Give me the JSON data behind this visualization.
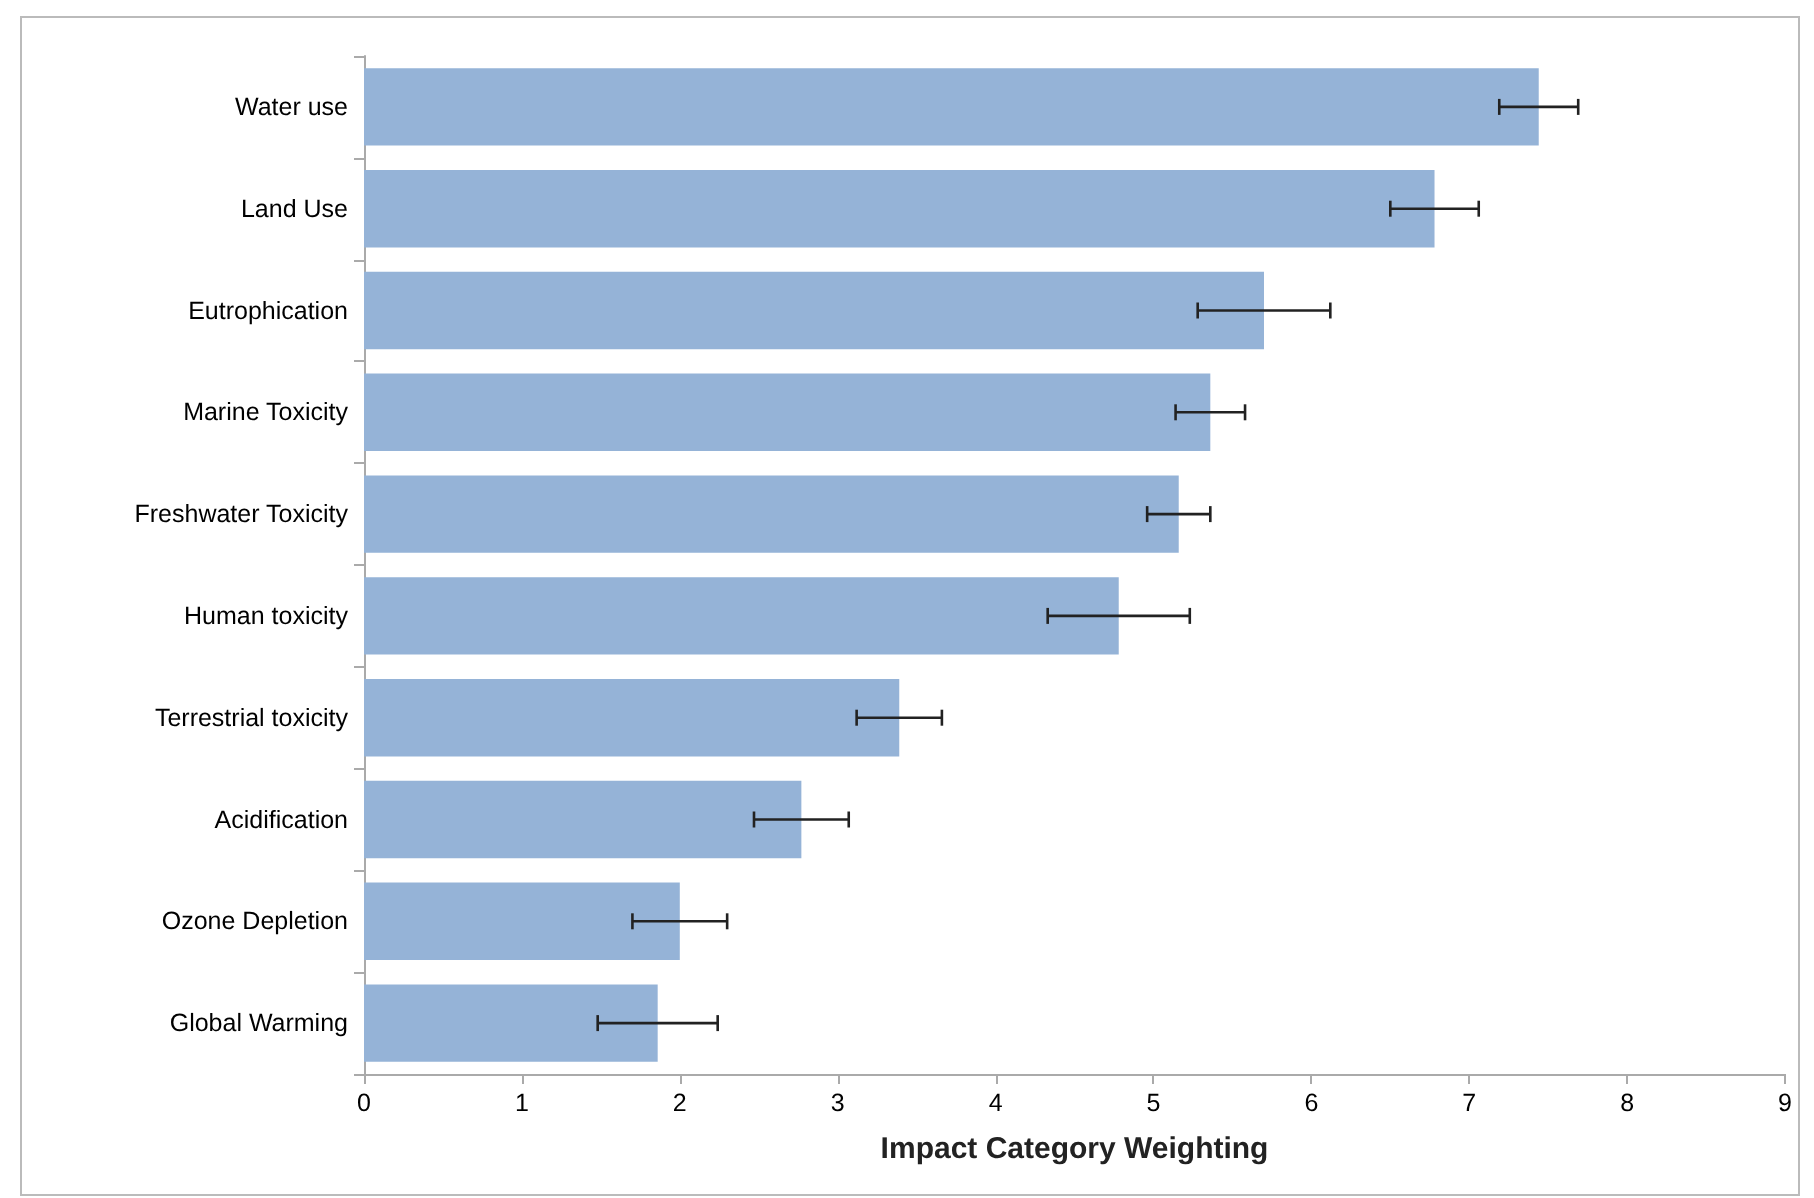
{
  "chart_data": {
    "type": "bar",
    "orientation": "horizontal",
    "xlabel": "Impact Category Weighting",
    "categories": [
      "Water use",
      "Land Use",
      "Eutrophication",
      "Marine Toxicity",
      "Freshwater Toxicity",
      "Human toxicity",
      "Terrestrial toxicity",
      "Acidification",
      "Ozone Depletion",
      "Global Warming"
    ],
    "values": [
      7.44,
      6.78,
      5.7,
      5.36,
      5.16,
      4.78,
      3.39,
      2.77,
      2.0,
      1.86
    ],
    "errors": [
      0.25,
      0.28,
      0.42,
      0.22,
      0.2,
      0.45,
      0.27,
      0.3,
      0.3,
      0.38
    ],
    "color": "#95b3d7",
    "xlim": [
      0,
      9
    ],
    "xticks": [
      0,
      1,
      2,
      3,
      4,
      5,
      6,
      7,
      8,
      9
    ],
    "grid": false
  }
}
